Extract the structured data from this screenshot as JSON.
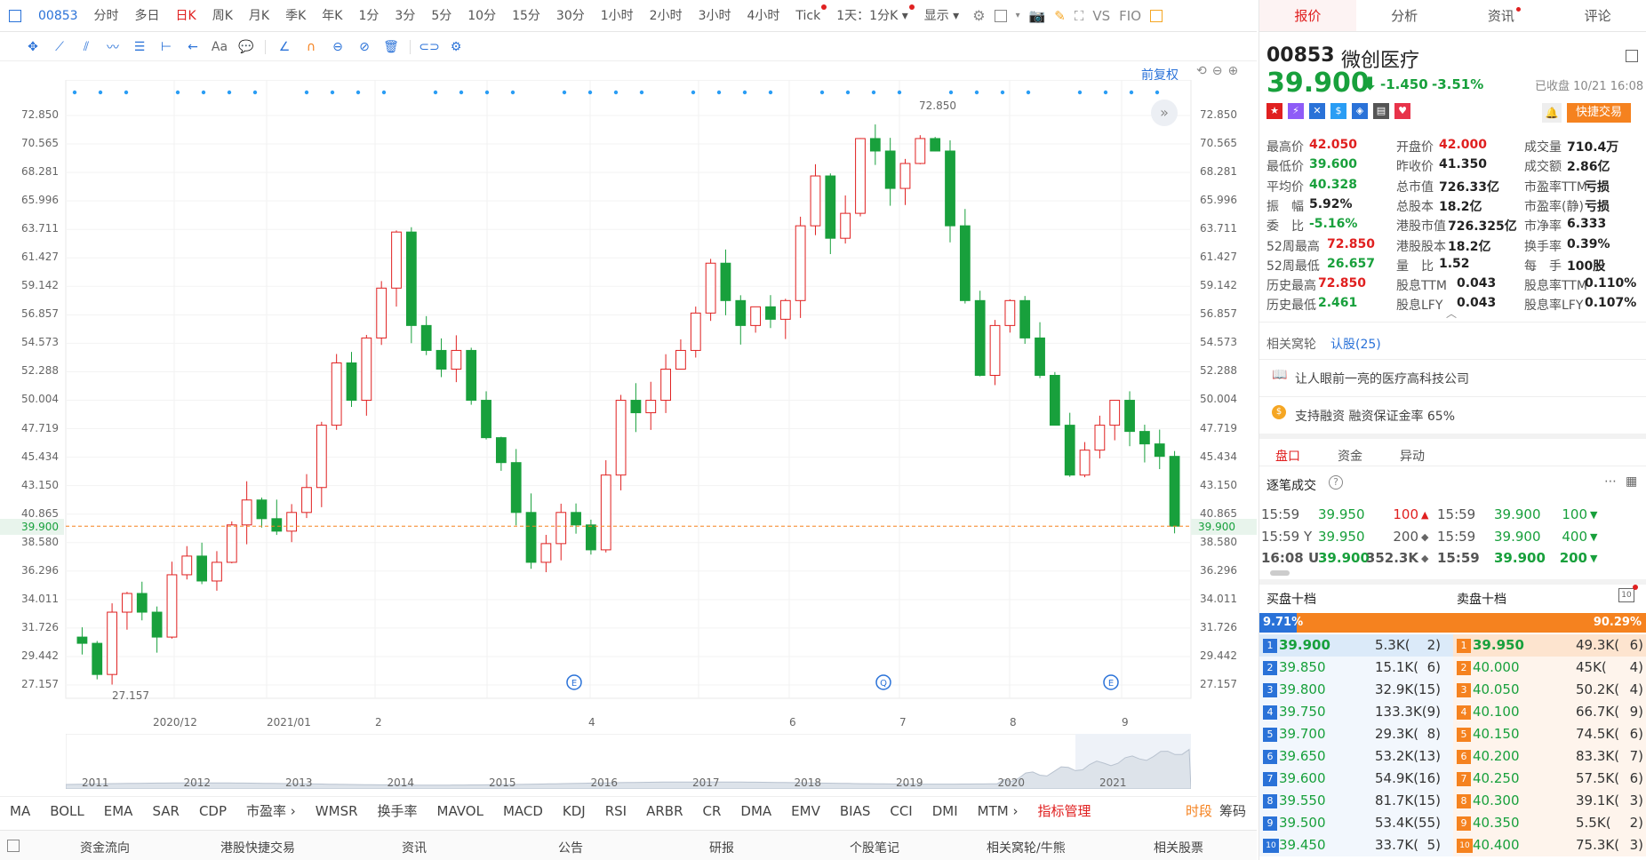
{
  "toolbar": {
    "items": [
      {
        "label": "00853",
        "type": "code"
      },
      {
        "label": "分时"
      },
      {
        "label": "多日"
      },
      {
        "label": "日K",
        "active": true
      },
      {
        "label": "周K"
      },
      {
        "label": "月K"
      },
      {
        "label": "季K"
      },
      {
        "label": "年K"
      },
      {
        "label": "1分"
      },
      {
        "label": "3分"
      },
      {
        "label": "5分"
      },
      {
        "label": "10分"
      },
      {
        "label": "15分"
      },
      {
        "label": "30分"
      },
      {
        "label": "1小时"
      },
      {
        "label": "2小时"
      },
      {
        "label": "3小时"
      },
      {
        "label": "4小时"
      },
      {
        "label": "Tick",
        "dot": true
      },
      {
        "label": "1天：1分K ▾",
        "dot": true
      },
      {
        "label": "显示 ▾"
      }
    ],
    "right_icons": [
      "gear-icon",
      "square-icon",
      "camera-icon",
      "pencil-icon",
      "fullscreen-icon"
    ],
    "vs": "VS",
    "fio": "FIO"
  },
  "drawbar": {
    "icons": [
      "crosshair-icon",
      "line-icon",
      "channel-icon",
      "wave-icon",
      "fib-icon",
      "measure-icon",
      "arrow-icon",
      "text-icon",
      "comment-icon",
      "ruler-icon",
      "magnet-icon",
      "lock-icon",
      "eye-off-icon",
      "trash-icon",
      "link-icon",
      "settings-icon"
    ],
    "text_tool": "Aa"
  },
  "chart": {
    "adjust_label": "前复权",
    "last_price": "39.900",
    "max_label": "72.850",
    "min_label": "27.157",
    "y_ticks": [
      "72.850",
      "70.565",
      "68.281",
      "65.996",
      "63.711",
      "61.427",
      "59.142",
      "56.857",
      "54.573",
      "52.288",
      "50.004",
      "47.719",
      "45.434",
      "43.150",
      "40.865",
      "38.580",
      "36.296",
      "34.011",
      "31.726",
      "29.442",
      "27.157"
    ],
    "x_ticks": [
      "2020/12",
      "2021/01",
      "2",
      "4",
      "6",
      "7",
      "8",
      "9"
    ],
    "overview_years": [
      "2011",
      "2012",
      "2013",
      "2014",
      "2015",
      "2016",
      "2017",
      "2018",
      "2019",
      "2020",
      "2021"
    ],
    "event_markers": [
      "E",
      "Q",
      "E"
    ]
  },
  "chart_data": {
    "type": "candlestick",
    "title": "",
    "ylim": [
      27.157,
      72.85
    ],
    "series": [
      {
        "name": "00853",
        "values": [
          30.5,
          28.0,
          33.0,
          34.5,
          33.0,
          31.0,
          36.0,
          37.5,
          35.5,
          37.0,
          40.0,
          42.0,
          40.5,
          39.5,
          41.0,
          43.0,
          48.0,
          53.0,
          50.0,
          55.0,
          59.0,
          63.5,
          56.0,
          54.0,
          52.5,
          54.0,
          50.0,
          47.0,
          45.0,
          41.0,
          37.0,
          38.5,
          41.0,
          40.0,
          38.0,
          44.0,
          50.0,
          49.0,
          50.0,
          52.5,
          54.0,
          57.0,
          61.0,
          58.0,
          56.0,
          57.5,
          56.5,
          58.0,
          64.0,
          68.0,
          63.0,
          65.0,
          71.0,
          70.0,
          67.0,
          69.0,
          71.0,
          70.0,
          64.0,
          58.0,
          52.0,
          56.0,
          58.0,
          55.0,
          52.0,
          48.0,
          44.0,
          46.0,
          48.0,
          50.0,
          47.5,
          46.5,
          45.5,
          39.9
        ]
      }
    ]
  },
  "right": {
    "tabs": [
      "报价",
      "分析",
      "资讯",
      "评论"
    ],
    "code": "00853",
    "name": "微创医疗",
    "price": "39.900",
    "arrow": "⬇",
    "change": "-1.450",
    "pct": "-3.51%",
    "status": "已收盘 10/21 16:08",
    "quick_trade": "快捷交易",
    "stats": [
      [
        "最高价",
        "42.050",
        "开盘价",
        "42.000",
        "成交量",
        "710.4万"
      ],
      [
        "最低价",
        "39.600",
        "昨收价",
        "41.350",
        "成交额",
        "2.86亿"
      ],
      [
        "平均价",
        "40.328",
        "总市值",
        "726.33亿",
        "市盈率TTM",
        "亏损"
      ],
      [
        "振　幅",
        "5.92%",
        "总股本",
        "18.2亿",
        "市盈率(静)",
        "亏损"
      ],
      [
        "委　比",
        "-5.16%",
        "港股市值",
        "726.325亿",
        "市净率",
        "6.333"
      ],
      [
        "52周最高",
        "72.850",
        "港股股本",
        "18.2亿",
        "换手率",
        "0.39%"
      ],
      [
        "52周最低",
        "26.657",
        "量　比",
        "1.52",
        "每　手",
        "100股"
      ],
      [
        "历史最高",
        "72.850",
        "股息TTM",
        "0.043",
        "股息率TTM",
        "0.110%"
      ],
      [
        "历史最低",
        "2.461",
        "股息LFY",
        "0.043",
        "股息率LFY",
        "0.107%"
      ]
    ],
    "warrant_label": "相关窝轮",
    "warrant_link": "认股(25)",
    "desc": "让人眼前一亮的医疗高科技公司",
    "margin": "支持融资 融资保证金率 65%",
    "sub_tabs": [
      "盘口",
      "资金",
      "异动"
    ],
    "ticks_title": "逐笔成交",
    "ticks": [
      [
        "15:59",
        "39.950",
        "100",
        "▲",
        "15:59",
        "39.900",
        "100",
        "▼"
      ],
      [
        "15:59 Y",
        "39.950",
        "200",
        "◆",
        "15:59",
        "39.900",
        "400",
        "▼"
      ],
      [
        "16:08 U",
        "39.900",
        "352.3K",
        "◆",
        "15:59",
        "39.900",
        "200",
        "▼"
      ]
    ],
    "bid_title": "买盘十档",
    "ask_title": "卖盘十档",
    "bid_pct": "9.71%",
    "ask_pct": "90.29%",
    "book": [
      [
        "1",
        "39.900",
        "5.3K(",
        "2)",
        "1",
        "39.950",
        "49.3K(",
        "6)"
      ],
      [
        "2",
        "39.850",
        "15.1K(",
        "6)",
        "2",
        "40.000",
        "45K(",
        "4)"
      ],
      [
        "3",
        "39.800",
        "32.9K(",
        "15)",
        "3",
        "40.050",
        "50.2K(",
        "4)"
      ],
      [
        "4",
        "39.750",
        "133.3K(",
        "9)",
        "4",
        "40.100",
        "66.7K(",
        "9)"
      ],
      [
        "5",
        "39.700",
        "29.3K(",
        "8)",
        "5",
        "40.150",
        "74.5K(",
        "6)"
      ],
      [
        "6",
        "39.650",
        "53.2K(",
        "13)",
        "6",
        "40.200",
        "83.3K(",
        "7)"
      ],
      [
        "7",
        "39.600",
        "54.9K(",
        "16)",
        "7",
        "40.250",
        "57.5K(",
        "6)"
      ],
      [
        "8",
        "39.550",
        "81.7K(",
        "15)",
        "8",
        "40.300",
        "39.1K(",
        "3)"
      ],
      [
        "9",
        "39.500",
        "53.4K(",
        "55)",
        "9",
        "40.350",
        "5.5K(",
        "2)"
      ],
      [
        "10",
        "39.450",
        "33.7K(",
        "5)",
        "10",
        "40.400",
        "75.3K(",
        "3)"
      ]
    ]
  },
  "indicators": {
    "items": [
      "MA",
      "BOLL",
      "EMA",
      "SAR",
      "CDP",
      "市盈率 ›",
      "WMSR",
      "换手率",
      "MAVOL",
      "MACD",
      "KDJ",
      "RSI",
      "ARBR",
      "CR",
      "DMA",
      "EMV",
      "BIAS",
      "CCI",
      "DMI",
      "MTM ›",
      "指标管理"
    ],
    "right1": "时段",
    "right2": "筹码"
  },
  "bottom": {
    "items": [
      "资金流向",
      "港股快捷交易",
      "资讯",
      "公告",
      "研报",
      "个股笔记",
      "相关窝轮/牛熊",
      "相关股票"
    ]
  },
  "colors": {
    "up": "#e02020",
    "down": "#18a03c",
    "accent": "#2a72d8",
    "orange": "#f5821f"
  }
}
